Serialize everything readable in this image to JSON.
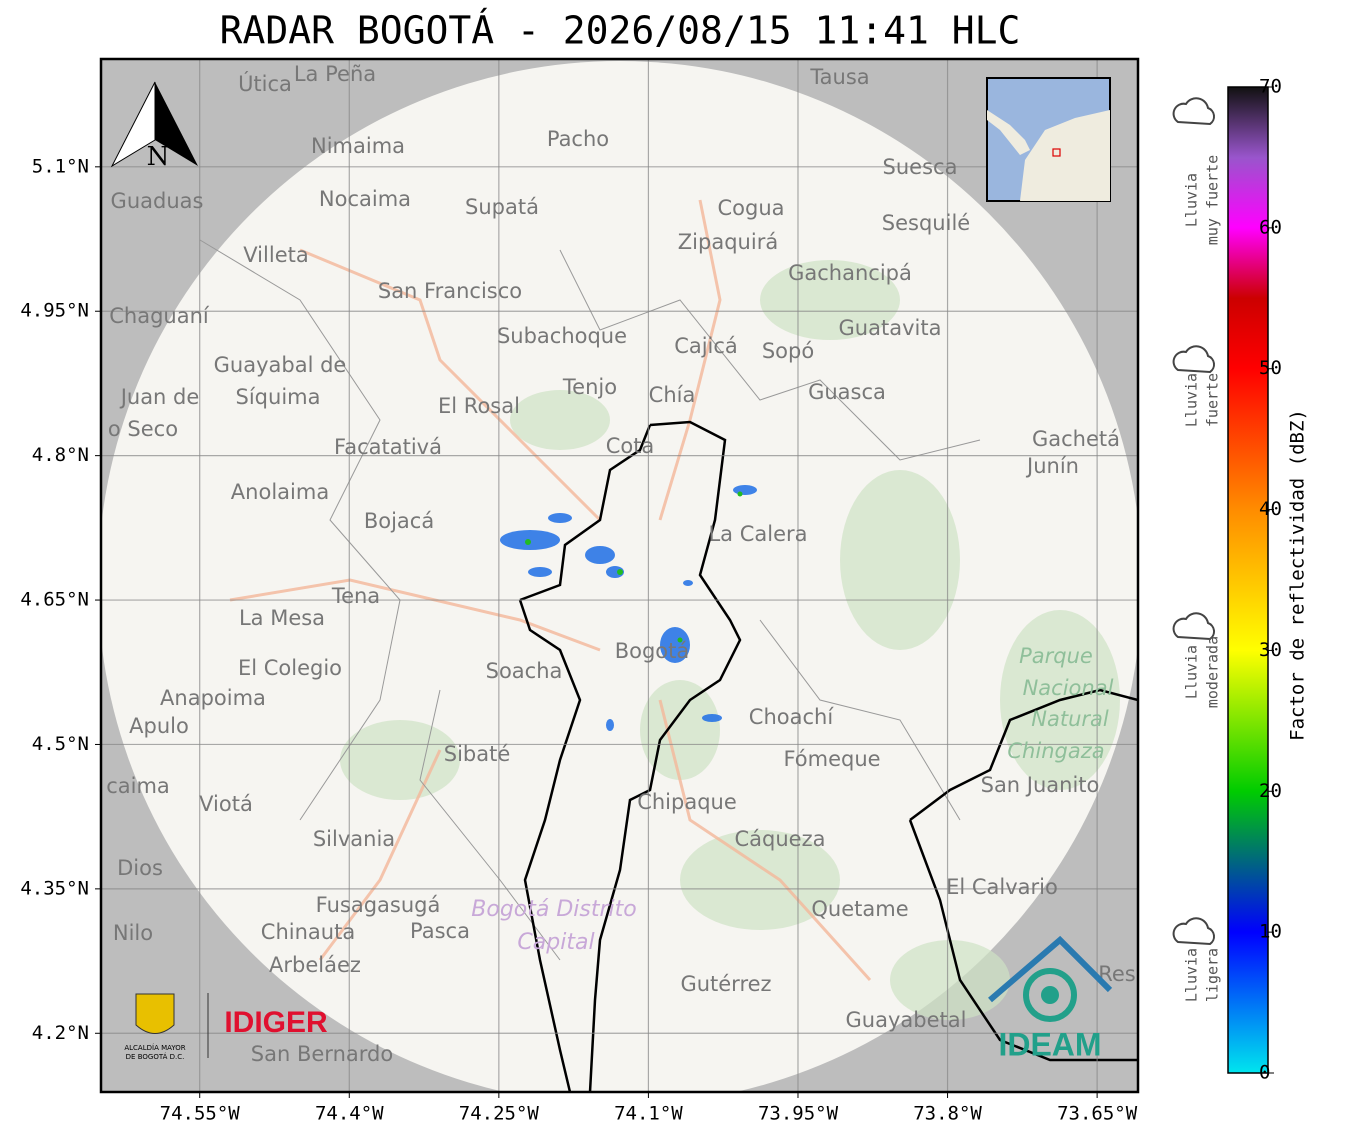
{
  "title": "RADAR BOGOTÁ - 2026/08/15 11:41 HLC",
  "map": {
    "xlim": [
      -74.649,
      -73.609
    ],
    "ylim": [
      4.139,
      5.212
    ],
    "xticks": [
      {
        "value": -74.55,
        "label": "74.55°W"
      },
      {
        "value": -74.4,
        "label": "74.4°W"
      },
      {
        "value": -74.25,
        "label": "74.25°W"
      },
      {
        "value": -74.1,
        "label": "74.1°W"
      },
      {
        "value": -73.95,
        "label": "73.95°W"
      },
      {
        "value": -73.8,
        "label": "73.8°W"
      },
      {
        "value": -73.65,
        "label": "73.65°W"
      }
    ],
    "yticks": [
      {
        "value": 5.1,
        "label": "5.1°N"
      },
      {
        "value": 4.95,
        "label": "4.95°N"
      },
      {
        "value": 4.8,
        "label": "4.8°N"
      },
      {
        "value": 4.65,
        "label": "4.65°N"
      },
      {
        "value": 4.5,
        "label": "4.5°N"
      },
      {
        "value": 4.35,
        "label": "4.35°N"
      },
      {
        "value": 4.2,
        "label": "4.2°N"
      }
    ],
    "grid": true,
    "places": [
      "Útica",
      "La Peña",
      "Tausa",
      "Pacho",
      "Nimaima",
      "Guaduas",
      "Nocaima",
      "Supatá",
      "Cogua",
      "Suesca",
      "Sesquilé",
      "Zipaquirá",
      "Villeta",
      "Gachancipá",
      "San Francisco",
      "Chaguaní",
      "Guatavita",
      "Subachoque",
      "Cajicá",
      "Sopó",
      "Guayabal de",
      "Síquima",
      "Tenjo",
      "Chía",
      "Guasca",
      "Juan de",
      "o Seco",
      "El Rosal",
      "Facatativá",
      "Cota",
      "Gachetá",
      "Junín",
      "Anolaima",
      "Bojacá",
      "La Calera",
      "Tena",
      "La Mesa",
      "El Colegio",
      "Soacha",
      "Bogotá",
      "Anapoima",
      "Choachí",
      "Apulo",
      "Sibaté",
      "Fómeque",
      "San Juanito",
      "caima",
      "Viotá",
      "Chipaque",
      "Cáqueza",
      "Silvania",
      "Dios",
      "El Calvario",
      "Fusagasugá",
      "Quetame",
      "Nilo",
      "Chinauta",
      "Pasca",
      "Arbeláez",
      "Gutérrez",
      "Res",
      "Guayabetal",
      "San Bernardo"
    ],
    "park_labels": [
      "Parque",
      "Nacional",
      "Natural",
      "Chingaza"
    ],
    "district_labels": [
      "Bogotá Distrito",
      "Capital"
    ],
    "north": "N",
    "logos": {
      "alcaldia": [
        "ALCALDÍA MAYOR",
        "DE BOGOTÁ D.C."
      ],
      "idiger": "IDIGER",
      "ideam": "IDEAM"
    }
  },
  "colorbar": {
    "label": "Factor de reflectividad (dBZ)",
    "lim": [
      0,
      70
    ],
    "ticks": [
      0,
      10,
      20,
      30,
      40,
      50,
      60,
      70
    ],
    "colors": [
      {
        "value": 0,
        "color": "#00e5ee"
      },
      {
        "value": 10,
        "color": "#0000ff"
      },
      {
        "value": 20,
        "color": "#00cc00"
      },
      {
        "value": 30,
        "color": "#ffff00"
      },
      {
        "value": 40,
        "color": "#ff8c00"
      },
      {
        "value": 50,
        "color": "#ff0000"
      },
      {
        "value": 55,
        "color": "#cc0000"
      },
      {
        "value": 60,
        "color": "#ff00ff"
      },
      {
        "value": 65,
        "color": "#9955cc"
      },
      {
        "value": 70,
        "color": "#111111"
      }
    ]
  },
  "intensity_legend": [
    [
      "Lluvia",
      "muy fuerte"
    ],
    [
      "Lluvia",
      "fuerte"
    ],
    [
      "Lluvia",
      "moderada"
    ],
    [
      "Lluvia",
      "ligera"
    ]
  ]
}
